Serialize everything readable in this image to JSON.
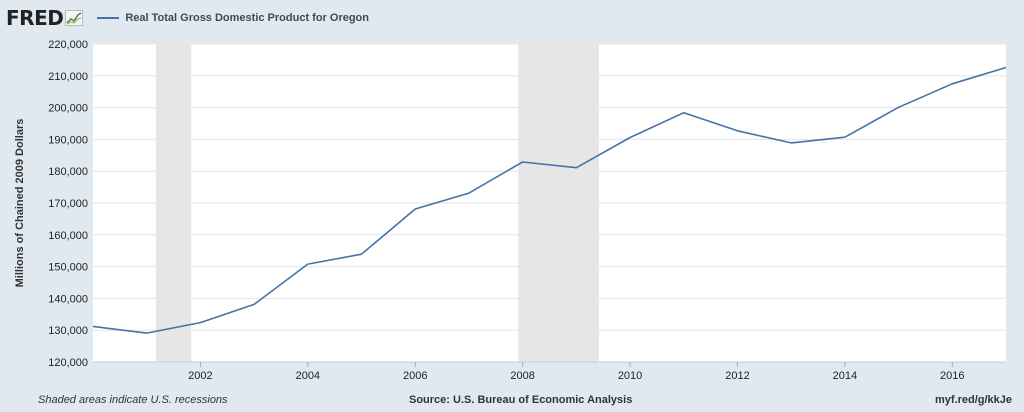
{
  "brand": {
    "name": "FRED",
    "icon": "sparkline-chart-icon"
  },
  "chart_data": {
    "type": "line",
    "title": "Real Total Gross Domestic Product for Oregon",
    "xlabel": "",
    "ylabel": "Millions of Chained 2009 Dollars",
    "ylim": [
      120000,
      220000
    ],
    "xlim": [
      2000,
      2017
    ],
    "yticks": [
      120000,
      130000,
      140000,
      150000,
      160000,
      170000,
      180000,
      190000,
      200000,
      210000,
      220000
    ],
    "ytick_labels": [
      "120,000",
      "130,000",
      "140,000",
      "150,000",
      "160,000",
      "170,000",
      "180,000",
      "190,000",
      "200,000",
      "210,000",
      "220,000"
    ],
    "xticks": [
      2002,
      2004,
      2006,
      2008,
      2010,
      2012,
      2014,
      2016
    ],
    "xtick_labels": [
      "2002",
      "2004",
      "2006",
      "2008",
      "2010",
      "2012",
      "2014",
      "2016"
    ],
    "grid": true,
    "legend_position": "top-left",
    "line_color": "#4572a7",
    "recession_color": "#e6e6e6",
    "recessions": [
      {
        "start": 2001.17,
        "end": 2001.83
      },
      {
        "start": 2007.92,
        "end": 2009.42
      }
    ],
    "series": [
      {
        "name": "Real Total Gross Domestic Product for Oregon",
        "x": [
          2000,
          2001,
          2002,
          2003,
          2004,
          2005,
          2006,
          2007,
          2008,
          2009,
          2010,
          2011,
          2012,
          2013,
          2014,
          2015,
          2016,
          2017
        ],
        "y": [
          131200,
          129100,
          132400,
          138100,
          150800,
          153900,
          168100,
          173100,
          182900,
          181100,
          190600,
          198400,
          192700,
          188900,
          190700,
          200100,
          207500,
          212600
        ]
      }
    ]
  },
  "footer": {
    "note": "Shaded areas indicate U.S. recessions",
    "source": "Source: U.S. Bureau of Economic Analysis",
    "url": "myf.red/g/kkJe"
  }
}
